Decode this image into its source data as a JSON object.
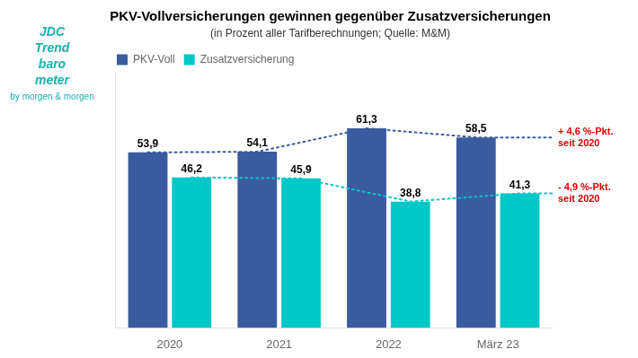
{
  "chart_data": {
    "type": "bar",
    "title": "PKV-Vollversicherungen gewinnen gegenüber Zusatzversicherungen",
    "subtitle": "(in Prozent aller Tarifberechnungen; Quelle: M&M)",
    "categories": [
      "2020",
      "2021",
      "2022",
      "März 23"
    ],
    "series": [
      {
        "name": "PKV-Voll",
        "color": "#3A5BA0",
        "values": [
          53.9,
          54.1,
          61.3,
          58.5
        ],
        "value_labels": [
          "53,9",
          "54,1",
          "61,3",
          "58,5"
        ],
        "line_style": "dotted"
      },
      {
        "name": "Zusatzversicherung",
        "color": "#00C8C8",
        "values": [
          46.2,
          45.9,
          38.8,
          41.3
        ],
        "value_labels": [
          "46,2",
          "45,9",
          "38,8",
          "41,3"
        ],
        "line_style": "dotted"
      }
    ],
    "ylim": [
      0,
      78
    ],
    "yticks": [],
    "grid": false,
    "legend": "upper left",
    "data_labels": true,
    "tick_labels": "x",
    "annotations": [
      {
        "text": "+ 4,6 %-Pkt.\nseit 2020",
        "series": "PKV-Voll",
        "color": "#DD0000"
      },
      {
        "text": "- 4,9 %-Pkt.\nseit 2020",
        "series": "Zusatzversicherung",
        "color": "#DD0000"
      },
      {
        "text": "JDC",
        "color": "#1AAFAF"
      },
      {
        "text": "Trend",
        "color": "#1AAFAF"
      },
      {
        "text": "baro",
        "color": "#1AAFAF"
      },
      {
        "text": "meter",
        "color": "#1AAFAF"
      },
      {
        "text": "by morgen & morgen",
        "color": "#1AAFAF"
      }
    ]
  }
}
